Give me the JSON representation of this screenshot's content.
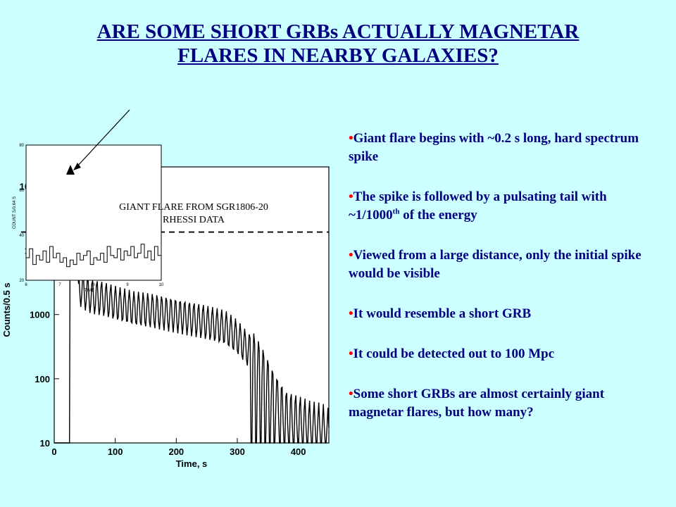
{
  "title": {
    "line1": "ARE SOME SHORT GRBs ACTUALLY MAGNETAR",
    "line2": "FLARES IN NEARBY GALAXIES?"
  },
  "bullets": [
    {
      "pre": "Giant flare begins with ~0.2 s long, hard spectrum spike",
      "sup": "",
      "post": ""
    },
    {
      "pre": "The spike is followed by a pulsating tail with ~1/1000",
      "sup": "th",
      "post": " of the energy"
    },
    {
      "pre": "Viewed from a large distance, only the initial spike would be visible",
      "sup": "",
      "post": ""
    },
    {
      "pre": "It would resemble a short GRB",
      "sup": "",
      "post": ""
    },
    {
      "pre": "It could be detected out to 100 Mpc",
      "sup": "",
      "post": ""
    },
    {
      "pre": "Some short GRBs are almost certainly giant magnetar flares, but how many?",
      "sup": "",
      "post": ""
    }
  ],
  "chart_data": [
    {
      "type": "line",
      "annotation_line1": "GIANT FLARE FROM SGR1806-20",
      "annotation_line2": "RHESSI DATA",
      "xlabel": "Time, s",
      "ylabel": "Counts/0.5 s",
      "x_ticks": [
        "0",
        "100",
        "200",
        "300",
        "400"
      ],
      "y_ticks": [
        "10",
        "100",
        "1000",
        "10000",
        "100000"
      ],
      "xlim": [
        0,
        450
      ],
      "ylim": [
        10,
        200000
      ],
      "yscale": "log",
      "background_level": 10000,
      "series": [
        {
          "values_description_free": true,
          "x": [
            0,
            25,
            26,
            27,
            28,
            30,
            32,
            35,
            40,
            50,
            60,
            80,
            100,
            130,
            160,
            200,
            240,
            280,
            300,
            320,
            340,
            360,
            380,
            400,
            420,
            440,
            450
          ],
          "y": [
            10,
            10,
            12000,
            200000,
            150000,
            60000,
            20000,
            8000,
            3000,
            2500,
            2200,
            2000,
            1700,
            1400,
            1300,
            1100,
            900,
            700,
            500,
            300,
            150,
            60,
            30,
            25,
            20,
            18,
            15
          ]
        }
      ]
    },
    {
      "type": "line",
      "xlabel": "TIME",
      "ylabel": "COUNT S/0.64 S",
      "x_ticks": [
        "6",
        "7",
        "8",
        "9",
        "10"
      ],
      "y_ticks": [
        "20",
        "40",
        "60",
        "80"
      ],
      "xlim": [
        6,
        10
      ],
      "ylim": [
        20,
        80
      ],
      "series": [
        {
          "x": [
            6.0,
            6.1,
            6.2,
            6.3,
            6.4,
            6.5,
            6.6,
            6.7,
            6.8,
            6.9,
            7.0,
            7.1,
            7.2,
            7.3,
            7.4,
            7.5,
            7.6,
            7.7,
            7.8,
            7.9,
            8.0,
            8.1,
            8.2,
            8.3,
            8.4,
            8.5,
            8.6,
            8.7,
            8.8,
            8.9,
            9.0,
            9.1,
            9.2,
            9.3,
            9.4,
            9.5,
            9.6,
            9.7,
            9.8,
            9.9,
            10.0
          ],
          "y": [
            30,
            34,
            27,
            31,
            29,
            33,
            28,
            35,
            30,
            32,
            28,
            30,
            26,
            29,
            27,
            32,
            29,
            31,
            33,
            27,
            30,
            29,
            32,
            28,
            35,
            31,
            30,
            34,
            29,
            33,
            31,
            35,
            30,
            32,
            36,
            30,
            33,
            29,
            35,
            31,
            32
          ]
        }
      ]
    }
  ]
}
